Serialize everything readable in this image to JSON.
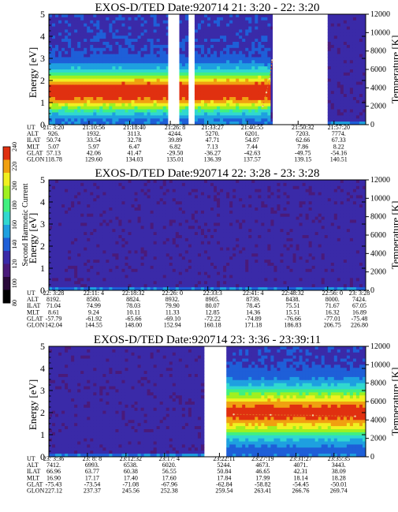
{
  "chart_data": [
    {
      "type": "heatmap",
      "title": "EXOS-D/TED   Date:920714  21: 3:20 - 22: 3:20",
      "ylabel": "Energy [eV]",
      "y2label": "Temperature [K]",
      "ylim": [
        0,
        5
      ],
      "y2lim": [
        0,
        12000
      ],
      "yticks": [
        "0",
        "1",
        "2",
        "3",
        "4",
        "5"
      ],
      "y2ticks": [
        "0",
        "2000",
        "4000",
        "6000",
        "8000",
        "10000",
        "12000"
      ],
      "xlim_minutes": [
        0,
        60
      ],
      "gaps": [
        [
          22.6,
          24.7
        ],
        [
          26.6,
          27.5
        ],
        [
          42.4,
          52.5
        ]
      ],
      "temperature_trace": [
        [
          40.5,
          2000
        ],
        [
          41.2,
          3500
        ],
        [
          41.8,
          5000
        ],
        [
          42.3,
          7000
        ]
      ],
      "band": {
        "center_energy": 1.5,
        "width_energy": 0.9,
        "intensity": 0.75,
        "start": 0,
        "end": 42
      },
      "orbit_table": {
        "row_labels": [
          "UT",
          "ALT",
          "ILAT",
          "MLT",
          "GLAT",
          "GLON"
        ],
        "columns": [
          {
            "t": 0,
            "values": [
              "21: 3:20",
              "926.",
              "50.74",
              "5.07",
              "57.13",
              "118.78"
            ]
          },
          {
            "t": 7.6,
            "values": [
              "21:10:56",
              "1932.",
              "33.54",
              "5.97",
              "42.06",
              "129.60"
            ]
          },
          {
            "t": 15.3,
            "values": [
              "21:18:40",
              "3113.",
              "32.78",
              "6.47",
              "41.47",
              "134.03"
            ]
          },
          {
            "t": 23.0,
            "values": [
              "21:26: 8",
              "4244.",
              "39.89",
              "6.82",
              "-29.50",
              "135.01"
            ]
          },
          {
            "t": 30.1,
            "values": [
              "21:33:27",
              "5270.",
              "47.71",
              "7.13",
              "-36.27",
              "136.39"
            ]
          },
          {
            "t": 37.6,
            "values": [
              "21:40:55",
              "6201.",
              "54.87",
              "7.44",
              "-42.63",
              "137.57"
            ]
          },
          {
            "t": 47.2,
            "values": [
              "21:50:32",
              "7203.",
              "62.66",
              "7.86",
              "-49.75",
              "139.15"
            ]
          },
          {
            "t": 54.0,
            "values": [
              "21:57:20",
              "7774.",
              "67.33",
              "8.22",
              "-54.16",
              "140.51"
            ]
          }
        ]
      }
    },
    {
      "type": "heatmap",
      "title": "EXOS-D/TED   Date:920714  22: 3:28 - 23: 3:28",
      "ylabel": "Energy [eV]",
      "y2label": "Temperature [K]",
      "ylim": [
        0,
        5
      ],
      "y2lim": [
        0,
        12000
      ],
      "yticks": [
        "0",
        "1",
        "2",
        "3",
        "4",
        "5"
      ],
      "y2ticks": [
        "0",
        "2000",
        "4000",
        "6000",
        "8000",
        "10000",
        "12000"
      ],
      "xlim_minutes": [
        0,
        60
      ],
      "gaps": [],
      "temperature_trace": [],
      "orbit_table": {
        "row_labels": [
          "UT",
          "ALT",
          "ILAT",
          "MLT",
          "GLAT",
          "GLON"
        ],
        "columns": [
          {
            "t": 0,
            "values": [
              "22: 3:28",
              "8192.",
              "71.04",
              "8.61",
              "-57.79",
              "142.04"
            ]
          },
          {
            "t": 7.6,
            "values": [
              "22:11: 4",
              "8580.",
              "74.99",
              "9.24",
              "-61.92",
              "144.55"
            ]
          },
          {
            "t": 15.1,
            "values": [
              "22:18:32",
              "8824.",
              "78.03",
              "10.11",
              "-65.66",
              "148.00"
            ]
          },
          {
            "t": 22.5,
            "values": [
              "22:26: 0",
              "8932.",
              "79.90",
              "11.33",
              "-69.10",
              "152.94"
            ]
          },
          {
            "t": 30.1,
            "values": [
              "22:33:3",
              "8905.",
              "80.07",
              "12.85",
              "-72.22",
              "160.18"
            ]
          },
          {
            "t": 37.8,
            "values": [
              "22:41: 4",
              "8739.",
              "78.45",
              "14.36",
              "-74.89",
              "171.18"
            ]
          },
          {
            "t": 45.3,
            "values": [
              "22:48:32",
              "8438.",
              "75.51",
              "15.51",
              "-76.66",
              "186.83"
            ]
          },
          {
            "t": 52.8,
            "values": [
              "22:56: 0",
              "8000.",
              "71.67",
              "16.32",
              "-77.01",
              "206.75"
            ]
          },
          {
            "t": 60,
            "values": [
              "23: 3:28",
              "7424.",
              "67.05",
              "16.89",
              "-75.48",
              "226.80"
            ]
          }
        ]
      }
    },
    {
      "type": "heatmap",
      "title": "EXOS-D/TED   Date:920714  23: 3:36 - 23:39:11",
      "ylabel": "Energy [eV]",
      "y2label": "Temperature [K]",
      "ylim": [
        0,
        5
      ],
      "y2lim": [
        0,
        12000
      ],
      "yticks": [
        "0",
        "1",
        "2",
        "3",
        "4",
        "5"
      ],
      "y2ticks": [
        "0",
        "2000",
        "4000",
        "6000",
        "8000",
        "10000",
        "12000"
      ],
      "xlim_minutes": [
        0,
        60
      ],
      "gaps": [
        [
          29.5,
          33.6
        ]
      ],
      "temperature_trace": [
        [
          35,
          4600
        ],
        [
          42,
          4550
        ],
        [
          50,
          4500
        ],
        [
          58,
          4400
        ]
      ],
      "band": {
        "center_energy": 2.0,
        "width_energy": 1.1,
        "intensity": 0.7,
        "start": 33.6,
        "end": 60
      },
      "orbit_table": {
        "row_labels": [
          "UT",
          "ALT",
          "ILAT",
          "MLT",
          "GLAT",
          "GLON"
        ],
        "columns": [
          {
            "t": 0,
            "values": [
              "23: 3:36",
              "7412.",
              "66.96",
              "16.90",
              "-75.43",
              "227.12"
            ]
          },
          {
            "t": 7.3,
            "values": [
              "23: 8: 8",
              "6993.",
              "63.77",
              "17.17",
              "-73.54",
              "237.37"
            ]
          },
          {
            "t": 14.6,
            "values": [
              "23:12:32",
              "6538.",
              "60.38",
              "17.40",
              "-71.08",
              "245.56"
            ]
          },
          {
            "t": 21.9,
            "values": [
              "23:17: 4",
              "6020.",
              "56.55",
              "17.60",
              "-67.96",
              "252.38"
            ]
          },
          {
            "t": 32.3,
            "values": [
              "23:22:11",
              "5244.",
              "50.84",
              "17.84",
              "-62.84",
              "259.54"
            ]
          },
          {
            "t": 39.6,
            "values": [
              "23:27:19",
              "4673.",
              "46.65",
              "17.99",
              "-58.82",
              "263.41"
            ]
          },
          {
            "t": 46.8,
            "values": [
              "23:31:27",
              "4071.",
              "42.31",
              "18.14",
              "-54.45",
              "266.76"
            ]
          },
          {
            "t": 54.0,
            "values": [
              "23:35:35",
              "3443.",
              "38.09",
              "18.28",
              "-50.01",
              "269.74"
            ]
          }
        ]
      }
    }
  ],
  "colorbar": {
    "label": "Second Harmonic Current",
    "ticks": [
      "80",
      "100",
      "120",
      "140",
      "160",
      "180",
      "200",
      "220",
      "240"
    ],
    "colors": [
      "#000000",
      "#2a0a3a",
      "#4a1a7a",
      "#3a2aa8",
      "#1e5fd8",
      "#1ea0e0",
      "#30d8d0",
      "#40f080",
      "#a0f020",
      "#f0f020",
      "#f0a010",
      "#e03010"
    ]
  }
}
